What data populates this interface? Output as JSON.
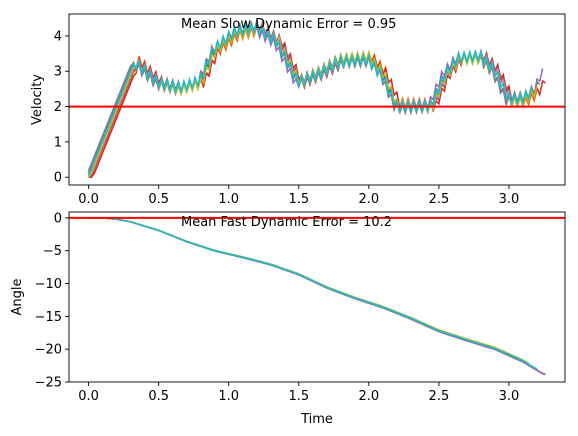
{
  "chart_data": [
    {
      "type": "line",
      "name": "velocity-plot",
      "ylabel": "Velocity",
      "xlabel": "",
      "xlim": [
        -0.14,
        3.4
      ],
      "ylim": [
        -0.22,
        4.62
      ],
      "xticks": [
        0.0,
        0.5,
        1.0,
        1.5,
        2.0,
        2.5,
        3.0
      ],
      "xtick_labels": [
        "0.0",
        "0.5",
        "1.0",
        "1.5",
        "2.0",
        "2.5",
        "3.0"
      ],
      "yticks": [
        0,
        1,
        2,
        3,
        4
      ],
      "ytick_labels": [
        "0",
        "1",
        "2",
        "3",
        "4"
      ],
      "annotation": "Mean Slow Dynamic Error = 0.95",
      "reference_line": {
        "y": 2.0,
        "color": "#ff0000"
      },
      "grid": false,
      "base_curve": {
        "x": [
          0.0,
          0.33,
          0.5,
          0.65,
          0.8,
          0.9,
          1.05,
          1.2,
          1.35,
          1.5,
          1.65,
          1.8,
          2.0,
          2.1,
          2.2,
          2.3,
          2.45,
          2.55,
          2.65,
          2.8,
          2.9,
          3.0,
          3.1,
          3.2,
          3.25
        ],
        "y": [
          0.0,
          3.25,
          2.65,
          2.5,
          2.7,
          3.6,
          4.1,
          4.25,
          3.85,
          2.7,
          2.95,
          3.3,
          3.35,
          2.9,
          2.0,
          2.0,
          2.0,
          2.9,
          3.35,
          3.4,
          3.0,
          2.2,
          2.2,
          2.5,
          3.0
        ]
      },
      "series_colors": [
        "#1f77b4",
        "#ff7f0e",
        "#2ca02c",
        "#d62728",
        "#9467bd",
        "#8c564b",
        "#e377c2",
        "#7f7f7f",
        "#bcbd22",
        "#17becf"
      ],
      "series_variation": [
        {
          "offset": 0.0,
          "shift": 0.0,
          "end": 3.17
        },
        {
          "offset": 0.1,
          "shift": 0.02,
          "end": 3.2
        },
        {
          "offset": 0.05,
          "shift": -0.01,
          "end": 3.22
        },
        {
          "offset": -0.03,
          "shift": 0.03,
          "end": 3.27
        },
        {
          "offset": -0.06,
          "shift": -0.02,
          "end": 3.25
        },
        {
          "offset": 0.07,
          "shift": 0.015,
          "end": 3.15
        },
        {
          "offset": 0.02,
          "shift": 0.01,
          "end": 3.18
        },
        {
          "offset": -0.02,
          "shift": -0.015,
          "end": 3.19
        },
        {
          "offset": 0.04,
          "shift": 0.005,
          "end": 3.21
        },
        {
          "offset": -0.04,
          "shift": -0.005,
          "end": 3.16
        }
      ]
    },
    {
      "type": "line",
      "name": "angle-plot",
      "ylabel": "Angle",
      "xlabel": "Time",
      "xlim": [
        -0.14,
        3.4
      ],
      "ylim": [
        -25,
        0.9
      ],
      "xticks": [
        0.0,
        0.5,
        1.0,
        1.5,
        2.0,
        2.5,
        3.0
      ],
      "xtick_labels": [
        "0.0",
        "0.5",
        "1.0",
        "1.5",
        "2.0",
        "2.5",
        "3.0"
      ],
      "yticks": [
        0,
        -5,
        -10,
        -15,
        -20,
        -25
      ],
      "ytick_labels": [
        "0",
        "−5",
        "−10",
        "−15",
        "−20",
        "−25"
      ],
      "annotation": "Mean Fast Dynamic Error = 10.2",
      "reference_line": {
        "y": 0.0,
        "color": "#ff0000"
      },
      "grid": false,
      "base_curve": {
        "x": [
          0.0,
          0.1,
          0.2,
          0.3,
          0.5,
          0.7,
          0.9,
          1.1,
          1.3,
          1.5,
          1.7,
          1.9,
          2.1,
          2.3,
          2.5,
          2.7,
          2.9,
          3.1,
          3.25
        ],
        "y": [
          0.0,
          0.0,
          -0.2,
          -0.6,
          -1.9,
          -3.6,
          -5.0,
          -6.0,
          -7.1,
          -8.6,
          -10.6,
          -12.2,
          -13.6,
          -15.3,
          -17.2,
          -18.6,
          -19.9,
          -21.8,
          -23.7
        ]
      },
      "series_colors": [
        "#1f77b4",
        "#ff7f0e",
        "#2ca02c",
        "#d62728",
        "#9467bd",
        "#8c564b",
        "#e377c2",
        "#7f7f7f",
        "#bcbd22",
        "#17becf"
      ],
      "series_variation": [
        {
          "offset": 0.0,
          "end": 3.15
        },
        {
          "offset": 0.15,
          "end": 3.15
        },
        {
          "offset": 0.1,
          "end": 3.15
        },
        {
          "offset": -0.1,
          "end": 3.27
        },
        {
          "offset": -0.15,
          "end": 3.27
        },
        {
          "offset": 0.05,
          "end": 3.15
        },
        {
          "offset": 0.08,
          "end": 3.15
        },
        {
          "offset": -0.05,
          "end": 3.2
        },
        {
          "offset": 0.12,
          "end": 3.15
        },
        {
          "offset": 0.02,
          "end": 3.2
        }
      ]
    }
  ]
}
